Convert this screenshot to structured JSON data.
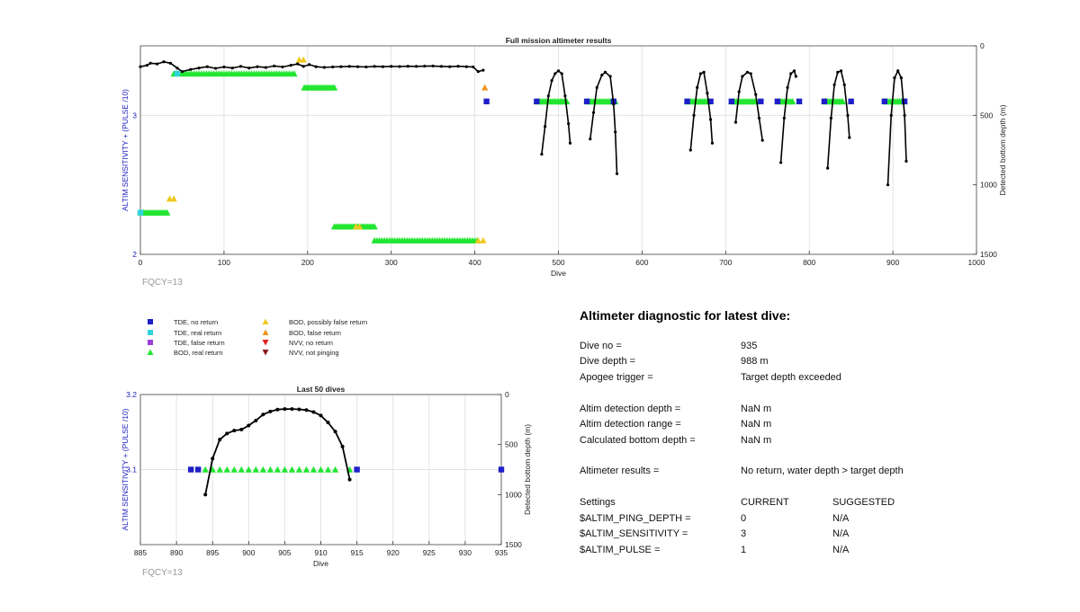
{
  "colors": {
    "tde_no_return": "#1f1fc8",
    "tde_real_return": "#32d2dc",
    "tde_false_return": "#9b3fd6",
    "bod_real_return": "#22e632",
    "bod_possibly_false": "#f0c81e",
    "bod_false_return": "#f0961e",
    "nvv_no_return": "#e61e1e",
    "nvv_not_pinging": "#8c1a1a",
    "left_axis": "#2020c0",
    "depth_line": "#000000"
  },
  "chart_data": [
    {
      "type": "scatter",
      "title": "Full mission altimeter results",
      "xlabel": "Dive",
      "ylabel": "ALTIM SENSITIVITY + (PULSE /10)",
      "ylabel_right": "Detected bottom depth (m)",
      "xlim": [
        0,
        1000
      ],
      "ylim": [
        2,
        3.5
      ],
      "ylim_right": [
        0,
        1500
      ],
      "right_axis_reversed": true,
      "xticks": [
        "0",
        "100",
        "200",
        "300",
        "400",
        "500",
        "600",
        "700",
        "800",
        "900",
        "1000"
      ],
      "yticks": [
        "2",
        "3"
      ],
      "yticks_right": [
        "0",
        "500",
        "1000",
        "1500"
      ],
      "grid": true,
      "note": "FQCY=13",
      "series": [
        {
          "name": "BOD, real return",
          "marker": "triangle-up",
          "color_key": "bod_real_return",
          "ranges": [
            [
              0,
              32,
              2.3
            ],
            [
              40,
              186,
              3.3
            ],
            [
              196,
              232,
              3.2
            ],
            [
              232,
              280,
              2.2
            ],
            [
              280,
              404,
              2.1
            ],
            [
              474,
              510,
              3.1
            ],
            [
              534,
              568,
              3.1
            ],
            [
              654,
              680,
              3.1
            ],
            [
              707,
              738,
              3.1
            ],
            [
              762,
              780,
              3.1
            ],
            [
              818,
              840,
              3.1
            ],
            [
              890,
              914,
              3.1
            ]
          ]
        },
        {
          "name": "BOD, possibly false return",
          "marker": "triangle-up",
          "color_key": "bod_possibly_false",
          "points": [
            [
              35,
              2.4
            ],
            [
              40,
              2.4
            ],
            [
              190,
              3.4
            ],
            [
              195,
              3.4
            ],
            [
              258,
              2.2
            ],
            [
              262,
              2.2
            ],
            [
              404,
              2.1
            ],
            [
              410,
              2.1
            ]
          ]
        },
        {
          "name": "BOD, false return",
          "marker": "triangle-up",
          "color_key": "bod_false_return",
          "points": [
            [
              412,
              3.2
            ]
          ]
        },
        {
          "name": "TDE, real return",
          "marker": "square",
          "color_key": "tde_real_return",
          "points": [
            [
              0,
              2.3
            ],
            [
              44,
              3.3
            ]
          ]
        },
        {
          "name": "TDE, no return",
          "marker": "square",
          "color_key": "tde_no_return",
          "points": [
            [
              414,
              3.1
            ],
            [
              474,
              3.1
            ],
            [
              534,
              3.1
            ],
            [
              566,
              3.1
            ],
            [
              654,
              3.1
            ],
            [
              682,
              3.1
            ],
            [
              707,
              3.1
            ],
            [
              742,
              3.1
            ],
            [
              762,
              3.1
            ],
            [
              788,
              3.1
            ],
            [
              818,
              3.1
            ],
            [
              850,
              3.1
            ],
            [
              890,
              3.1
            ],
            [
              914,
              3.1
            ]
          ]
        }
      ],
      "depth_series": {
        "name": "Detected bottom depth",
        "segments": [
          [
            [
              0,
              150
            ],
            [
              8,
              140
            ],
            [
              12,
              125
            ],
            [
              20,
              130
            ],
            [
              28,
              115
            ],
            [
              36,
              125
            ],
            [
              44,
              160
            ],
            [
              50,
              185
            ],
            [
              60,
              170
            ],
            [
              70,
              160
            ],
            [
              80,
              150
            ],
            [
              90,
              162
            ],
            [
              100,
              152
            ],
            [
              110,
              160
            ],
            [
              120,
              148
            ],
            [
              130,
              160
            ],
            [
              140,
              150
            ],
            [
              150,
              156
            ],
            [
              160,
              145
            ],
            [
              170,
              152
            ],
            [
              180,
              140
            ],
            [
              188,
              130
            ],
            [
              195,
              148
            ],
            [
              202,
              135
            ],
            [
              210,
              150
            ],
            [
              220,
              155
            ],
            [
              230,
              152
            ],
            [
              240,
              150
            ],
            [
              250,
              148
            ],
            [
              260,
              150
            ],
            [
              270,
              152
            ],
            [
              280,
              148
            ],
            [
              290,
              150
            ],
            [
              300,
              148
            ],
            [
              310,
              149
            ],
            [
              320,
              147
            ],
            [
              330,
              148
            ],
            [
              340,
              146
            ],
            [
              350,
              145
            ],
            [
              360,
              148
            ],
            [
              370,
              150
            ],
            [
              380,
              147
            ],
            [
              390,
              150
            ],
            [
              398,
              152
            ],
            [
              404,
              185
            ],
            [
              410,
              175
            ]
          ],
          [
            [
              480,
              780
            ],
            [
              484,
              580
            ],
            [
              488,
              360
            ],
            [
              492,
              250
            ],
            [
              496,
              200
            ],
            [
              500,
              180
            ],
            [
              504,
              200
            ],
            [
              508,
              360
            ],
            [
              512,
              560
            ],
            [
              514,
              700
            ]
          ],
          [
            [
              538,
              670
            ],
            [
              542,
              480
            ],
            [
              546,
              300
            ],
            [
              552,
              210
            ],
            [
              556,
              190
            ],
            [
              562,
              220
            ],
            [
              566,
              420
            ],
            [
              568,
              620
            ],
            [
              570,
              920
            ]
          ],
          [
            [
              658,
              750
            ],
            [
              662,
              500
            ],
            [
              666,
              300
            ],
            [
              670,
              200
            ],
            [
              674,
              190
            ],
            [
              678,
              340
            ],
            [
              682,
              530
            ],
            [
              684,
              700
            ]
          ],
          [
            [
              712,
              550
            ],
            [
              716,
              330
            ],
            [
              720,
              220
            ],
            [
              726,
              190
            ],
            [
              730,
              200
            ],
            [
              736,
              350
            ],
            [
              740,
              520
            ],
            [
              744,
              680
            ]
          ],
          [
            [
              766,
              840
            ],
            [
              770,
              520
            ],
            [
              774,
              300
            ],
            [
              778,
              200
            ],
            [
              782,
              180
            ],
            [
              784,
              220
            ]
          ],
          [
            [
              822,
              880
            ],
            [
              826,
              520
            ],
            [
              830,
              280
            ],
            [
              834,
              190
            ],
            [
              838,
              180
            ],
            [
              842,
              280
            ],
            [
              846,
              500
            ],
            [
              848,
              660
            ]
          ],
          [
            [
              894,
              1000
            ],
            [
              898,
              500
            ],
            [
              902,
              230
            ],
            [
              906,
              180
            ],
            [
              910,
              230
            ],
            [
              914,
              500
            ],
            [
              916,
              830
            ]
          ]
        ]
      }
    },
    {
      "type": "scatter",
      "title": "Last 50 dives",
      "xlabel": "Dive",
      "ylabel": "ALTIM SENSITIVITY + (PULSE /10)",
      "ylabel_right": "Detected bottom depth (m)",
      "xlim": [
        885,
        935
      ],
      "ylim": [
        3,
        3.2
      ],
      "ylim_right": [
        0,
        1500
      ],
      "right_axis_reversed": true,
      "xticks": [
        "885",
        "890",
        "895",
        "900",
        "905",
        "910",
        "915",
        "920",
        "925",
        "930",
        "935"
      ],
      "yticks": [
        "3.1",
        "3.2"
      ],
      "yticks_right": [
        "0",
        "500",
        "1000",
        "1500"
      ],
      "grid": true,
      "note": "FQCY=13",
      "series": [
        {
          "name": "TDE, no return",
          "marker": "square",
          "color_key": "tde_no_return",
          "x": [
            892,
            893,
            915,
            935
          ],
          "y": [
            3.1,
            3.1,
            3.1,
            3.1
          ]
        },
        {
          "name": "BOD, real return",
          "marker": "triangle-up",
          "color_key": "bod_real_return",
          "x": [
            894,
            895,
            896,
            897,
            898,
            899,
            900,
            901,
            902,
            903,
            904,
            905,
            906,
            907,
            908,
            909,
            910,
            911,
            912,
            914
          ],
          "y": [
            3.1,
            3.1,
            3.1,
            3.1,
            3.1,
            3.1,
            3.1,
            3.1,
            3.1,
            3.1,
            3.1,
            3.1,
            3.1,
            3.1,
            3.1,
            3.1,
            3.1,
            3.1,
            3.1,
            3.1
          ]
        }
      ],
      "depth_series": {
        "name": "Detected bottom depth",
        "x": [
          894,
          895,
          896,
          897,
          898,
          899,
          900,
          901,
          902,
          903,
          904,
          905,
          906,
          907,
          908,
          909,
          910,
          911,
          912,
          913,
          914
        ],
        "y": [
          1000,
          640,
          450,
          390,
          360,
          350,
          310,
          260,
          200,
          170,
          150,
          145,
          145,
          148,
          155,
          175,
          210,
          280,
          370,
          520,
          850
        ]
      }
    }
  ],
  "legend": {
    "items": [
      {
        "label": "TDE, no return",
        "marker": "square",
        "color_key": "tde_no_return"
      },
      {
        "label": "TDE, real return",
        "marker": "square",
        "color_key": "tde_real_return"
      },
      {
        "label": "TDE, false return",
        "marker": "square",
        "color_key": "tde_false_return"
      },
      {
        "label": "BOD, real return",
        "marker": "triangle-up",
        "color_key": "bod_real_return"
      },
      {
        "label": "BOD, possibly false return",
        "marker": "triangle-up",
        "color_key": "bod_possibly_false"
      },
      {
        "label": "BOD, false return",
        "marker": "triangle-up",
        "color_key": "bod_false_return"
      },
      {
        "label": "NVV, no return",
        "marker": "triangle-down",
        "color_key": "nvv_no_return"
      },
      {
        "label": "NVV, not pinging",
        "marker": "triangle-down",
        "color_key": "nvv_not_pinging"
      }
    ]
  },
  "diagnostic": {
    "title": "Altimeter diagnostic for latest dive:",
    "rows": [
      {
        "label": "Dive no =",
        "value": "935"
      },
      {
        "label": "Dive depth =",
        "value": "988 m"
      },
      {
        "label": "Apogee trigger =",
        "value": "Target depth exceeded"
      },
      {
        "label": "Altim detection depth =",
        "value": "NaN m"
      },
      {
        "label": "Altim detection range =",
        "value": "NaN m"
      },
      {
        "label": "Calculated bottom depth =",
        "value": "NaN m"
      },
      {
        "label": "Altimeter results =",
        "value": "No return, water depth > target depth"
      }
    ],
    "settings_header": {
      "label": "Settings",
      "current": "CURRENT",
      "suggested": "SUGGESTED"
    },
    "settings": [
      {
        "name": "$ALTIM_PING_DEPTH =",
        "current": "0",
        "suggested": "N/A"
      },
      {
        "name": "$ALTIM_SENSITIVITY =",
        "current": "3",
        "suggested": "N/A"
      },
      {
        "name": "$ALTIM_PULSE =",
        "current": "1",
        "suggested": "N/A"
      }
    ]
  }
}
